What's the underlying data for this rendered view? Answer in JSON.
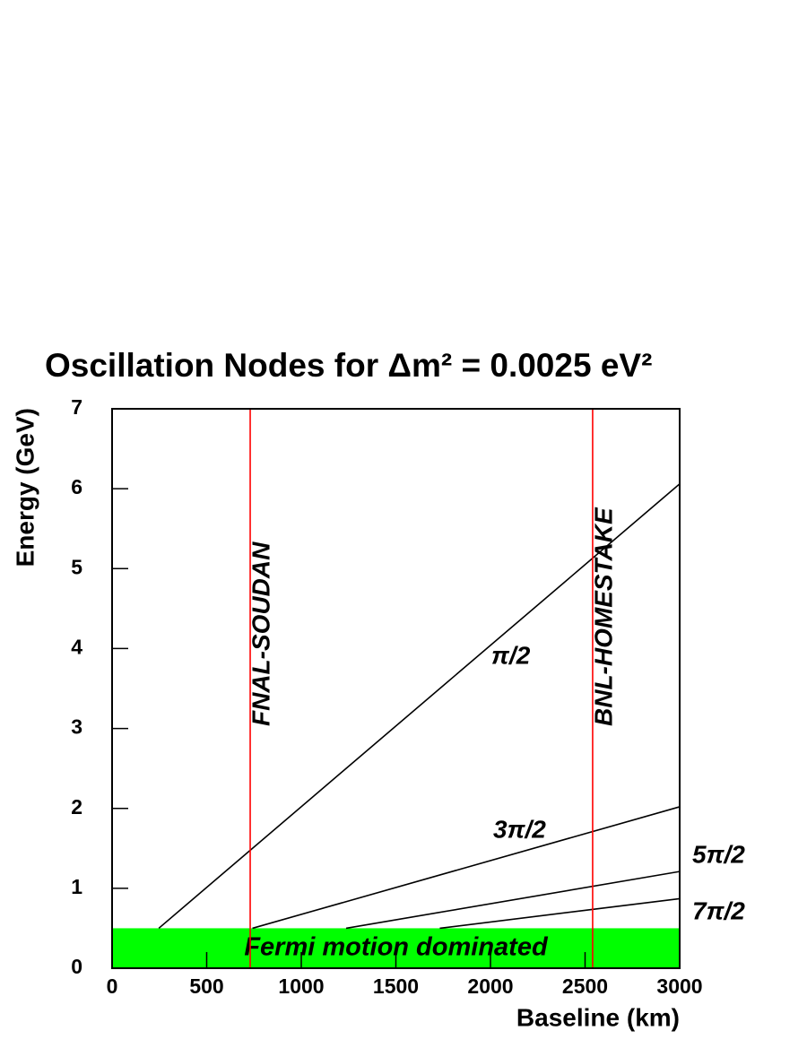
{
  "chart_data": {
    "type": "line",
    "title": "Oscillation Nodes for Δm² = 0.0025 eV²",
    "xlabel": "Baseline (km)",
    "ylabel": "Energy (GeV)",
    "xlim": [
      0,
      3000
    ],
    "ylim": [
      0,
      7
    ],
    "xticks": [
      0,
      500,
      1000,
      1500,
      2000,
      2500,
      3000
    ],
    "yticks": [
      0,
      1,
      2,
      3,
      4,
      5,
      6,
      7
    ],
    "series": [
      {
        "name": "π/2",
        "color": "#000000",
        "x": [
          247,
          3000
        ],
        "values": [
          0.5,
          6.06
        ]
      },
      {
        "name": "3π/2",
        "color": "#000000",
        "x": [
          742,
          3000
        ],
        "values": [
          0.5,
          2.02
        ]
      },
      {
        "name": "5π/2",
        "color": "#000000",
        "x": [
          1237,
          3000
        ],
        "values": [
          0.5,
          1.21
        ]
      },
      {
        "name": "7π/2",
        "color": "#000000",
        "x": [
          1732,
          3000
        ],
        "values": [
          0.5,
          0.87
        ]
      }
    ],
    "references": [
      {
        "label": "FNAL-SOUDAN",
        "x": 730,
        "color": "#ff0000"
      },
      {
        "label": "BNL-HOMESTAKE",
        "x": 2540,
        "color": "#ff0000"
      }
    ],
    "band": {
      "label": "Fermi motion dominated",
      "values": [
        0,
        0.5
      ],
      "color": "#00ff00"
    }
  }
}
